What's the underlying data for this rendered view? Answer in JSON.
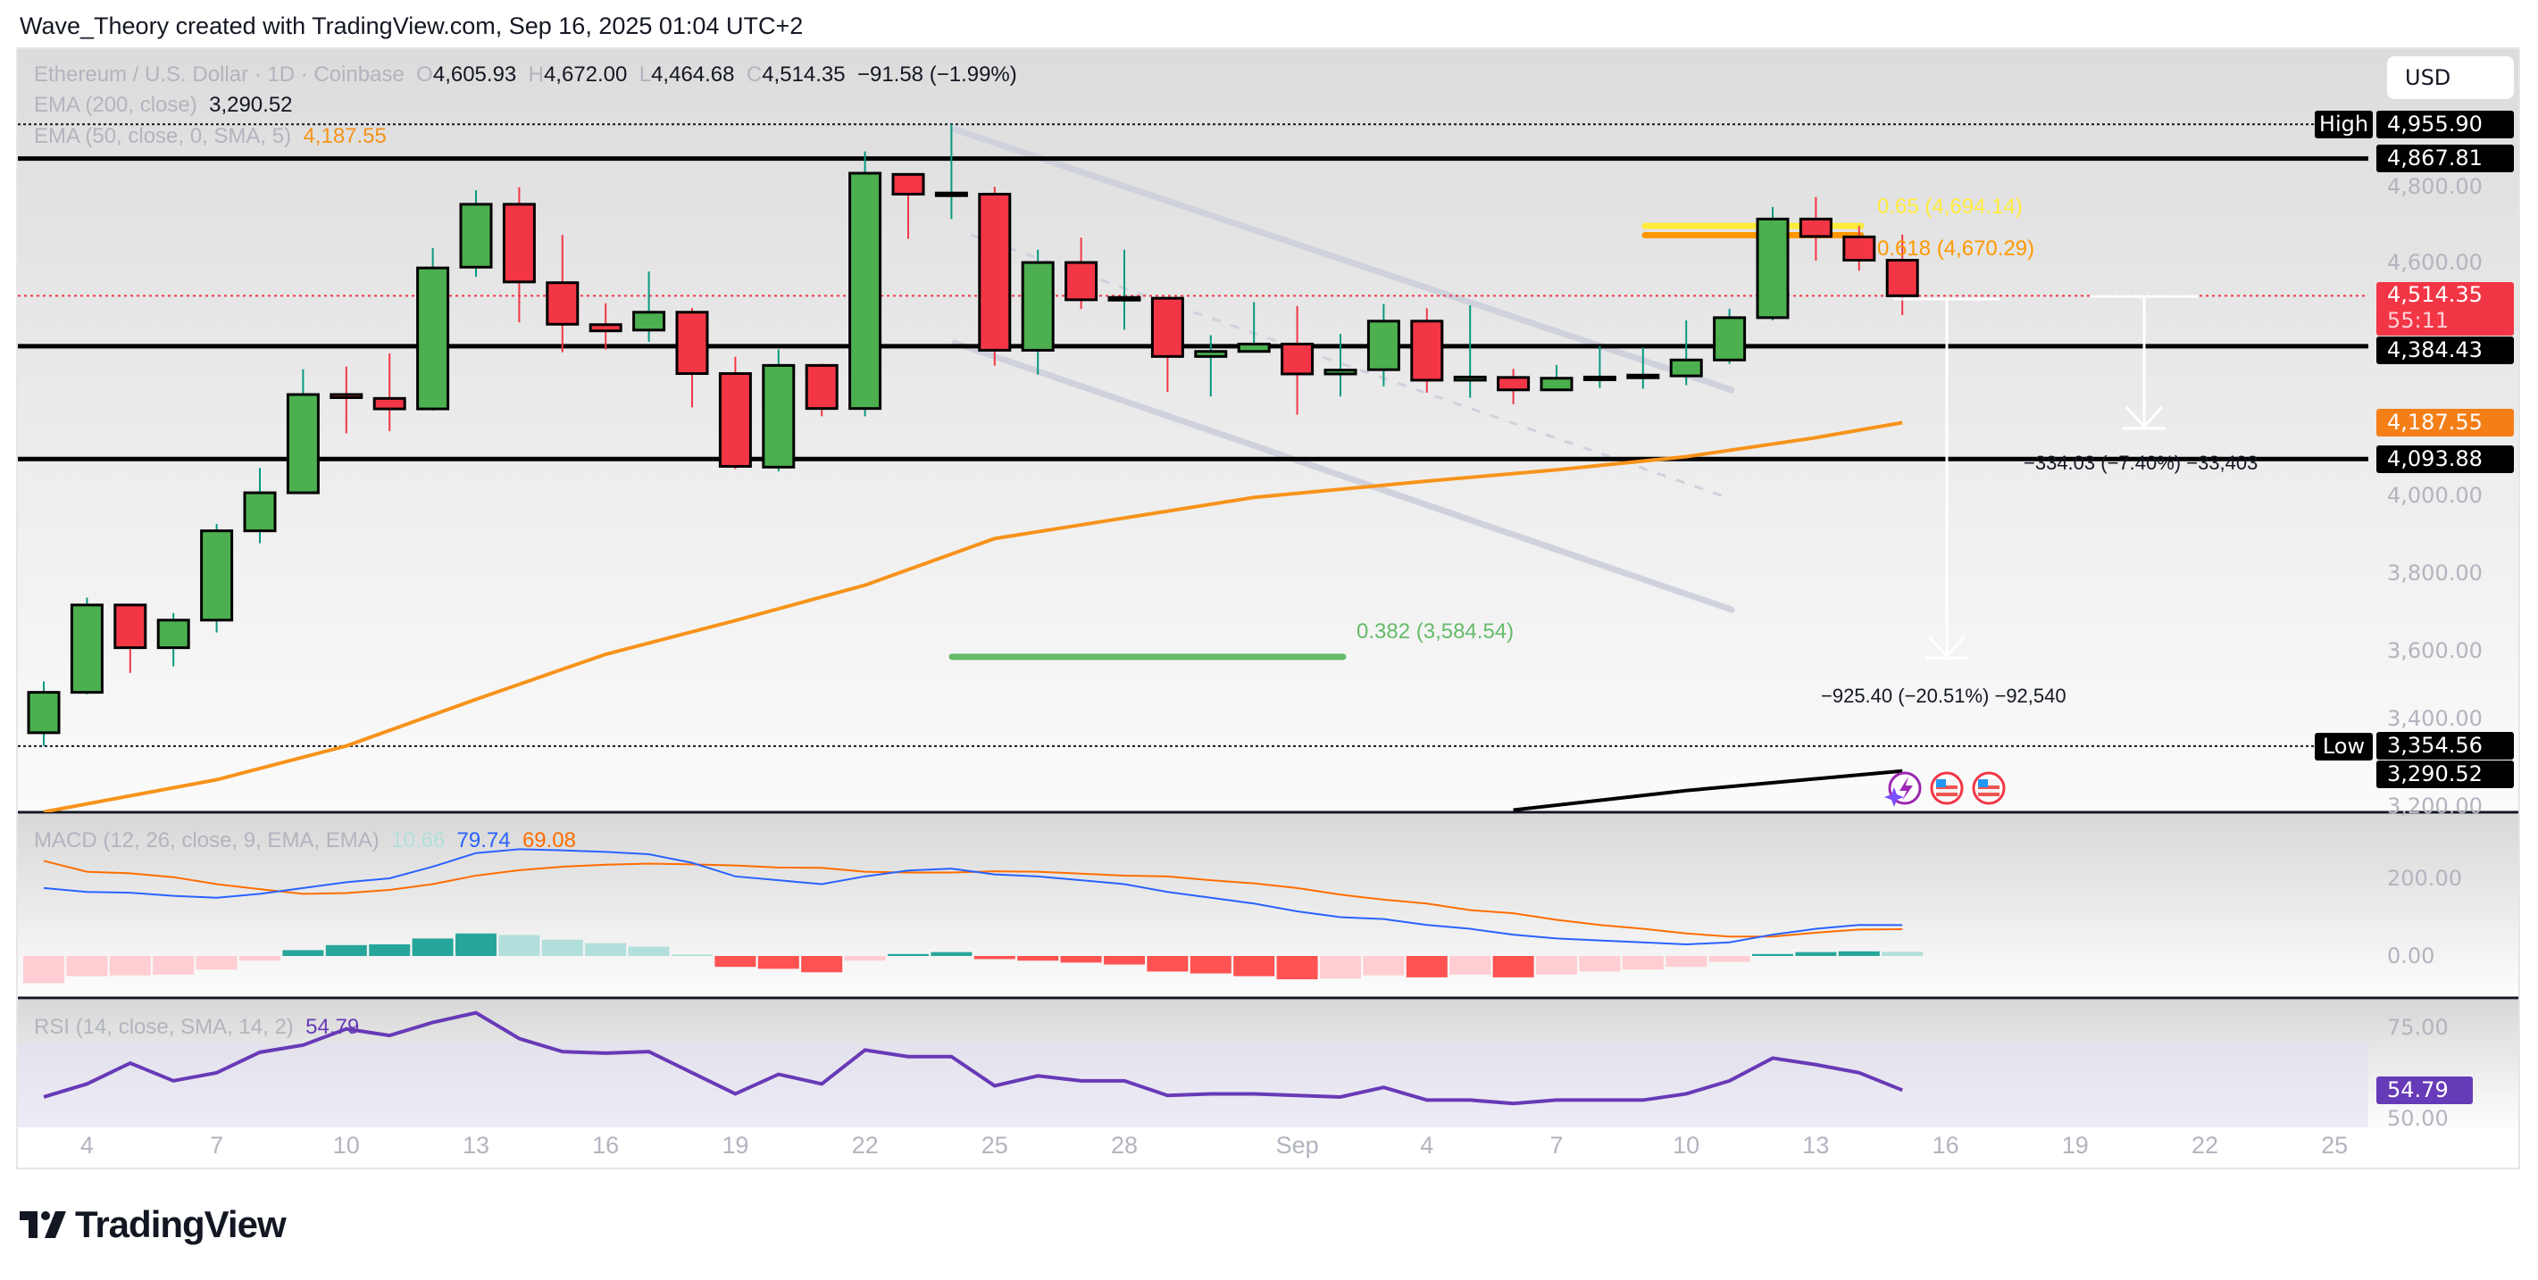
{
  "header": {
    "attribution": "Wave_Theory created with TradingView.com, Sep 16, 2025 01:04 UTC+2"
  },
  "legend": {
    "symbol": "Ethereum / U.S. Dollar · 1D · Coinbase",
    "o_label": "O",
    "open": "4,605.93",
    "h_label": "H",
    "high": "4,672.00",
    "l_label": "L",
    "low": "4,464.68",
    "c_label": "C",
    "close": "4,514.35",
    "change": "−91.58 (−1.99%)",
    "ema200_label": "EMA (200, close)",
    "ema200_value": "3,290.52",
    "ema50_label": "EMA (50, close, 0, SMA, 5)",
    "ema50_value": "4,187.55",
    "macd_label": "MACD (12, 26, close, 9, EMA, EMA)",
    "macd_hist": "10.66",
    "macd_value": "79.74",
    "macd_signal": "69.08",
    "rsi_label": "RSI (14, close, SMA, 14, 2)",
    "rsi_value": "54.79"
  },
  "price_axis": {
    "currency": "USD",
    "ticks": [
      {
        "text": "4,800.00",
        "price": 4800
      },
      {
        "text": "4,600.00",
        "price": 4600
      },
      {
        "text": "4,000.00",
        "price": 4000
      },
      {
        "text": "3,800.00",
        "price": 3800
      },
      {
        "text": "3,600.00",
        "price": 3600
      },
      {
        "text": "3,400.00",
        "price": 3400
      },
      {
        "text": "3,200.00",
        "price": 3200
      }
    ],
    "labels": [
      {
        "text": "4,955.90",
        "price": 4955.9,
        "color": "#000000"
      },
      {
        "text": "4,867.81",
        "price": 4867.81,
        "color": "#000000"
      },
      {
        "text": "4,514.35",
        "sub": "55:11",
        "price": 4514.35,
        "color": "#f23645"
      },
      {
        "text": "4,384.43",
        "price": 4384.43,
        "color": "#000000"
      },
      {
        "text": "4,187.55",
        "price": 4187.55,
        "color": "#f57f17"
      },
      {
        "text": "4,093.88",
        "price": 4093.88,
        "color": "#000000"
      },
      {
        "text": "3,354.56",
        "price": 3354.56,
        "color": "#000000"
      },
      {
        "text": "3,290.52",
        "price": 3290.52,
        "color": "#000000"
      }
    ],
    "high_tag": "High",
    "low_tag": "Low"
  },
  "macd_axis": [
    {
      "text": "200.00",
      "value": 200
    },
    {
      "text": "0.00",
      "value": 0
    }
  ],
  "rsi_axis": [
    {
      "text": "75.00",
      "value": 75
    },
    {
      "text": "50.00",
      "value": 50
    }
  ],
  "time_axis": [
    {
      "label": "4",
      "date": "2025-08-04"
    },
    {
      "label": "7",
      "date": "2025-08-07"
    },
    {
      "label": "10",
      "date": "2025-08-10"
    },
    {
      "label": "13",
      "date": "2025-08-13"
    },
    {
      "label": "16",
      "date": "2025-08-16"
    },
    {
      "label": "19",
      "date": "2025-08-19"
    },
    {
      "label": "22",
      "date": "2025-08-22"
    },
    {
      "label": "25",
      "date": "2025-08-25"
    },
    {
      "label": "28",
      "date": "2025-08-28"
    },
    {
      "label": "Sep",
      "date": "2025-09-01"
    },
    {
      "label": "4",
      "date": "2025-09-04"
    },
    {
      "label": "7",
      "date": "2025-09-07"
    },
    {
      "label": "10",
      "date": "2025-09-10"
    },
    {
      "label": "13",
      "date": "2025-09-13"
    },
    {
      "label": "16",
      "date": "2025-09-16"
    },
    {
      "label": "19",
      "date": "2025-09-19"
    },
    {
      "label": "22",
      "date": "2025-09-22"
    },
    {
      "label": "25",
      "date": "2025-09-25"
    }
  ],
  "annotations": {
    "fib_065": {
      "text": "0.65 (4,694.14)",
      "price": 4694.14,
      "color": "#ffeb3b"
    },
    "fib_0618": {
      "text": "0.618 (4,670.29)",
      "price": 4670.29,
      "color": "#ff9800"
    },
    "fib_0382": {
      "text": "0.382 (3,584.54)",
      "price": 3584.54,
      "color": "#66bb6a"
    },
    "measure_short": "−334.03 (−7.40%) −33,403",
    "measure_long": "−925.40 (−20.51%) −92,540",
    "levels": [
      4867.81,
      4384.43,
      4093.88
    ],
    "high": 4955.9,
    "low": 3354.56,
    "last_price": 4514.35
  },
  "footer": {
    "brand": "TradingView"
  },
  "chart_data": {
    "type": "candlestick",
    "title": "Ethereum / U.S. Dollar · 1D · Coinbase",
    "ylim": [
      3180,
      5000
    ],
    "columns": [
      "date",
      "open",
      "high",
      "low",
      "close"
    ],
    "candles": [
      [
        "2025-08-03",
        3389,
        3521,
        3355,
        3493
      ],
      [
        "2025-08-04",
        3493,
        3737,
        3488,
        3718
      ],
      [
        "2025-08-05",
        3718,
        3720,
        3543,
        3608
      ],
      [
        "2025-08-06",
        3608,
        3697,
        3560,
        3679
      ],
      [
        "2025-08-07",
        3679,
        3927,
        3647,
        3909
      ],
      [
        "2025-08-08",
        3909,
        4071,
        3877,
        4007
      ],
      [
        "2025-08-09",
        4007,
        4325,
        4005,
        4260
      ],
      [
        "2025-08-10",
        4260,
        4332,
        4160,
        4252
      ],
      [
        "2025-08-11",
        4250,
        4366,
        4166,
        4223
      ],
      [
        "2025-08-12",
        4223,
        4637,
        4219,
        4586
      ],
      [
        "2025-08-13",
        4588,
        4786,
        4563,
        4750
      ],
      [
        "2025-08-14",
        4750,
        4794,
        4446,
        4550
      ],
      [
        "2025-08-15",
        4548,
        4671,
        4369,
        4441
      ],
      [
        "2025-08-16",
        4440,
        4495,
        4376,
        4424
      ],
      [
        "2025-08-17",
        4426,
        4577,
        4396,
        4472
      ],
      [
        "2025-08-18",
        4472,
        4483,
        4227,
        4314
      ],
      [
        "2025-08-19",
        4314,
        4357,
        4068,
        4075
      ],
      [
        "2025-08-20",
        4073,
        4376,
        4062,
        4335
      ],
      [
        "2025-08-21",
        4335,
        4339,
        4204,
        4224
      ],
      [
        "2025-08-22",
        4224,
        4886,
        4204,
        4830
      ],
      [
        "2025-08-23",
        4827,
        4830,
        4661,
        4776
      ],
      [
        "2025-08-24",
        4776,
        4955.9,
        4712,
        4779
      ],
      [
        "2025-08-25",
        4776,
        4795,
        4334,
        4374
      ],
      [
        "2025-08-26",
        4374,
        4633,
        4311,
        4600
      ],
      [
        "2025-08-27",
        4600,
        4664,
        4480,
        4504
      ],
      [
        "2025-08-28",
        4508,
        4633,
        4427,
        4510
      ],
      [
        "2025-08-29",
        4508,
        4510,
        4267,
        4358
      ],
      [
        "2025-08-30",
        4358,
        4413,
        4255,
        4371
      ],
      [
        "2025-08-31",
        4371,
        4498,
        4370,
        4390
      ],
      [
        "2025-09-01",
        4390,
        4488,
        4208,
        4313
      ],
      [
        "2025-09-02",
        4313,
        4416,
        4255,
        4323
      ],
      [
        "2025-09-03",
        4324,
        4493,
        4281,
        4449
      ],
      [
        "2025-09-04",
        4449,
        4482,
        4265,
        4297
      ],
      [
        "2025-09-05",
        4297,
        4490,
        4252,
        4305
      ],
      [
        "2025-09-06",
        4304,
        4326,
        4235,
        4272
      ],
      [
        "2025-09-07",
        4272,
        4336,
        4272,
        4302
      ],
      [
        "2025-09-08",
        4303,
        4385,
        4277,
        4305
      ],
      [
        "2025-09-09",
        4308,
        4381,
        4275,
        4310
      ],
      [
        "2025-09-10",
        4308,
        4451,
        4284,
        4349
      ],
      [
        "2025-09-11",
        4349,
        4481,
        4339,
        4458
      ],
      [
        "2025-09-12",
        4458,
        4743,
        4451,
        4712
      ],
      [
        "2025-09-13",
        4712,
        4769,
        4605,
        4667
      ],
      [
        "2025-09-14",
        4666,
        4694,
        4579,
        4606
      ],
      [
        "2025-09-15",
        4605.93,
        4672.0,
        4464.68,
        4514.35
      ]
    ],
    "ema50": [
      [
        "2025-08-03",
        3185
      ],
      [
        "2025-08-07",
        3268
      ],
      [
        "2025-08-10",
        3355
      ],
      [
        "2025-08-13",
        3475
      ],
      [
        "2025-08-16",
        3591
      ],
      [
        "2025-08-19",
        3678
      ],
      [
        "2025-08-22",
        3769
      ],
      [
        "2025-08-25",
        3889
      ],
      [
        "2025-08-28",
        3942
      ],
      [
        "2025-08-31",
        3995
      ],
      [
        "2025-09-04",
        4037
      ],
      [
        "2025-09-07",
        4066
      ],
      [
        "2025-09-10",
        4100
      ],
      [
        "2025-09-13",
        4149
      ],
      [
        "2025-09-15",
        4187.55
      ]
    ],
    "ema200": [
      [
        "2025-09-06",
        3190
      ],
      [
        "2025-09-10",
        3240
      ],
      [
        "2025-09-15",
        3290.52
      ]
    ],
    "macd": {
      "macd": [
        175,
        165,
        163,
        155,
        150,
        160,
        175,
        190,
        200,
        230,
        265,
        275,
        272,
        268,
        262,
        240,
        205,
        195,
        185,
        205,
        220,
        225,
        210,
        205,
        195,
        185,
        165,
        150,
        135,
        115,
        100,
        95,
        80,
        70,
        55,
        45,
        40,
        35,
        30,
        35,
        55,
        70,
        80,
        79.74
      ],
      "signal": [
        245,
        217,
        213,
        203,
        185,
        172,
        160,
        162,
        170,
        185,
        207,
        221,
        230,
        235,
        238,
        236,
        233,
        228,
        227,
        217,
        215,
        215,
        218,
        217,
        212,
        207,
        205,
        195,
        187,
        175,
        158,
        145,
        135,
        118,
        110,
        93,
        80,
        70,
        58,
        50,
        50,
        60,
        68,
        69.08
      ],
      "histogram": [
        -70,
        -52,
        -50,
        -48,
        -35,
        -12,
        15,
        28,
        30,
        45,
        58,
        54,
        42,
        33,
        24,
        4,
        -28,
        -33,
        -42,
        -12,
        5,
        10,
        -8,
        -12,
        -17,
        -22,
        -40,
        -45,
        -52,
        -60,
        -58,
        -50,
        -55,
        -48,
        -55,
        -48,
        -40,
        -35,
        -28,
        -15,
        5,
        10,
        12,
        10.66
      ]
    },
    "rsi": [
      52.6,
      56.8,
      63.5,
      57.8,
      60.4,
      67,
      69.3,
      74.5,
      72.4,
      76.6,
      79.7,
      71.4,
      67.2,
      66.7,
      67.2,
      60.4,
      53.6,
      59.9,
      56.8,
      67.7,
      65.6,
      65.6,
      56.2,
      59.4,
      57.8,
      57.8,
      53.1,
      53.6,
      53.6,
      53.1,
      52.6,
      55.7,
      51.6,
      51.6,
      50.5,
      51.6,
      51.6,
      51.6,
      53.6,
      57.8,
      65.1,
      63,
      60.4,
      54.79
    ],
    "colors": {
      "up": "#4caf50",
      "down": "#f23645",
      "ema50": "#f7931a",
      "ema200": "#000000",
      "macd": "#2962ff",
      "signal": "#ff6d00",
      "rsi": "#673ab7"
    }
  }
}
